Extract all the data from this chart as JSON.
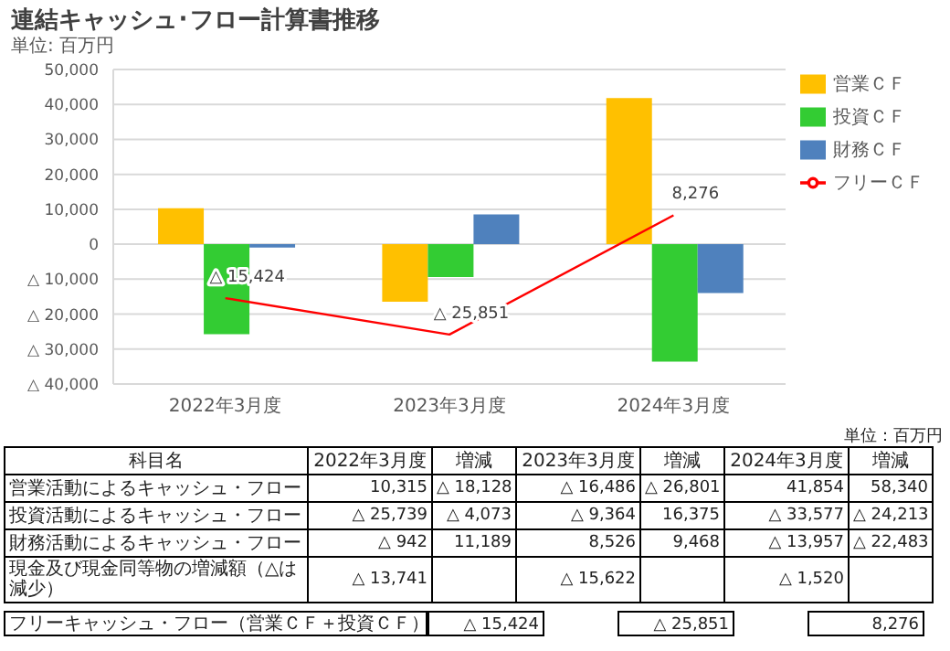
{
  "chart_data": {
    "type": "bar",
    "title": "連結キャッシュ･フロー計算書推移",
    "subtitle": "単位: 百万円",
    "categories": [
      "2022年3月度",
      "2023年3月度",
      "2024年3月度"
    ],
    "series": [
      {
        "name": "営業ＣＦ",
        "color": "#ffc000",
        "values": [
          10315,
          -16486,
          41854
        ]
      },
      {
        "name": "投資ＣＦ",
        "color": "#33cc33",
        "values": [
          -25739,
          -9364,
          -33577
        ]
      },
      {
        "name": "財務ＣＦ",
        "color": "#4f81bd",
        "values": [
          -942,
          8526,
          -13957
        ]
      },
      {
        "name": "フリーＣＦ",
        "type": "line",
        "color": "#ff0000",
        "values": [
          -15424,
          -25851,
          8276
        ]
      }
    ],
    "ylim": [
      -40000,
      50000
    ],
    "yticks": [
      {
        "value": -40000,
        "label": "△ 40,000"
      },
      {
        "value": -30000,
        "label": "△ 30,000"
      },
      {
        "value": -20000,
        "label": "△ 20,000"
      },
      {
        "value": -10000,
        "label": "△ 10,000"
      },
      {
        "value": 0,
        "label": "0"
      },
      {
        "value": 10000,
        "label": "10,000"
      },
      {
        "value": 20000,
        "label": "20,000"
      },
      {
        "value": 30000,
        "label": "30,000"
      },
      {
        "value": 40000,
        "label": "40,000"
      },
      {
        "value": 50000,
        "label": "50,000"
      }
    ],
    "grid": "y",
    "legend": "top right",
    "marker": "none",
    "annotations": [
      "単位：百万円",
      "科目名",
      "増減",
      "営業活動によるキャッシュ・フロー",
      "投資活動によるキャッシュ・フロー",
      "財務活動によるキャッシュ・フロー",
      "現金及び現金同等物の増減額（△は減少）",
      "フリーキャッシュ・フロー（営業ＣＦ＋投資ＣＦ）",
      {
        "text": "△ 15,424",
        "x": "2022年3月度",
        "y": -15424
      },
      {
        "text": "△ 25,851",
        "x": "2023年3月度",
        "y": -25851
      },
      {
        "text": "8,276",
        "x": "2024年3月度",
        "y": 8276
      },
      "10,315",
      "△ 16,486",
      "41,854",
      "△ 25,739",
      "△ 9,364",
      "△ 33,577",
      "△ 942",
      "8,526",
      "△ 13,957",
      "△ 18,128",
      "△ 26,801",
      "58,340",
      "△ 4,073",
      "16,375",
      "△ 24,213",
      "11,189",
      "9,468",
      "△ 22,483",
      "△ 13,741",
      "△ 15,622",
      "△ 1,520"
    ]
  }
}
